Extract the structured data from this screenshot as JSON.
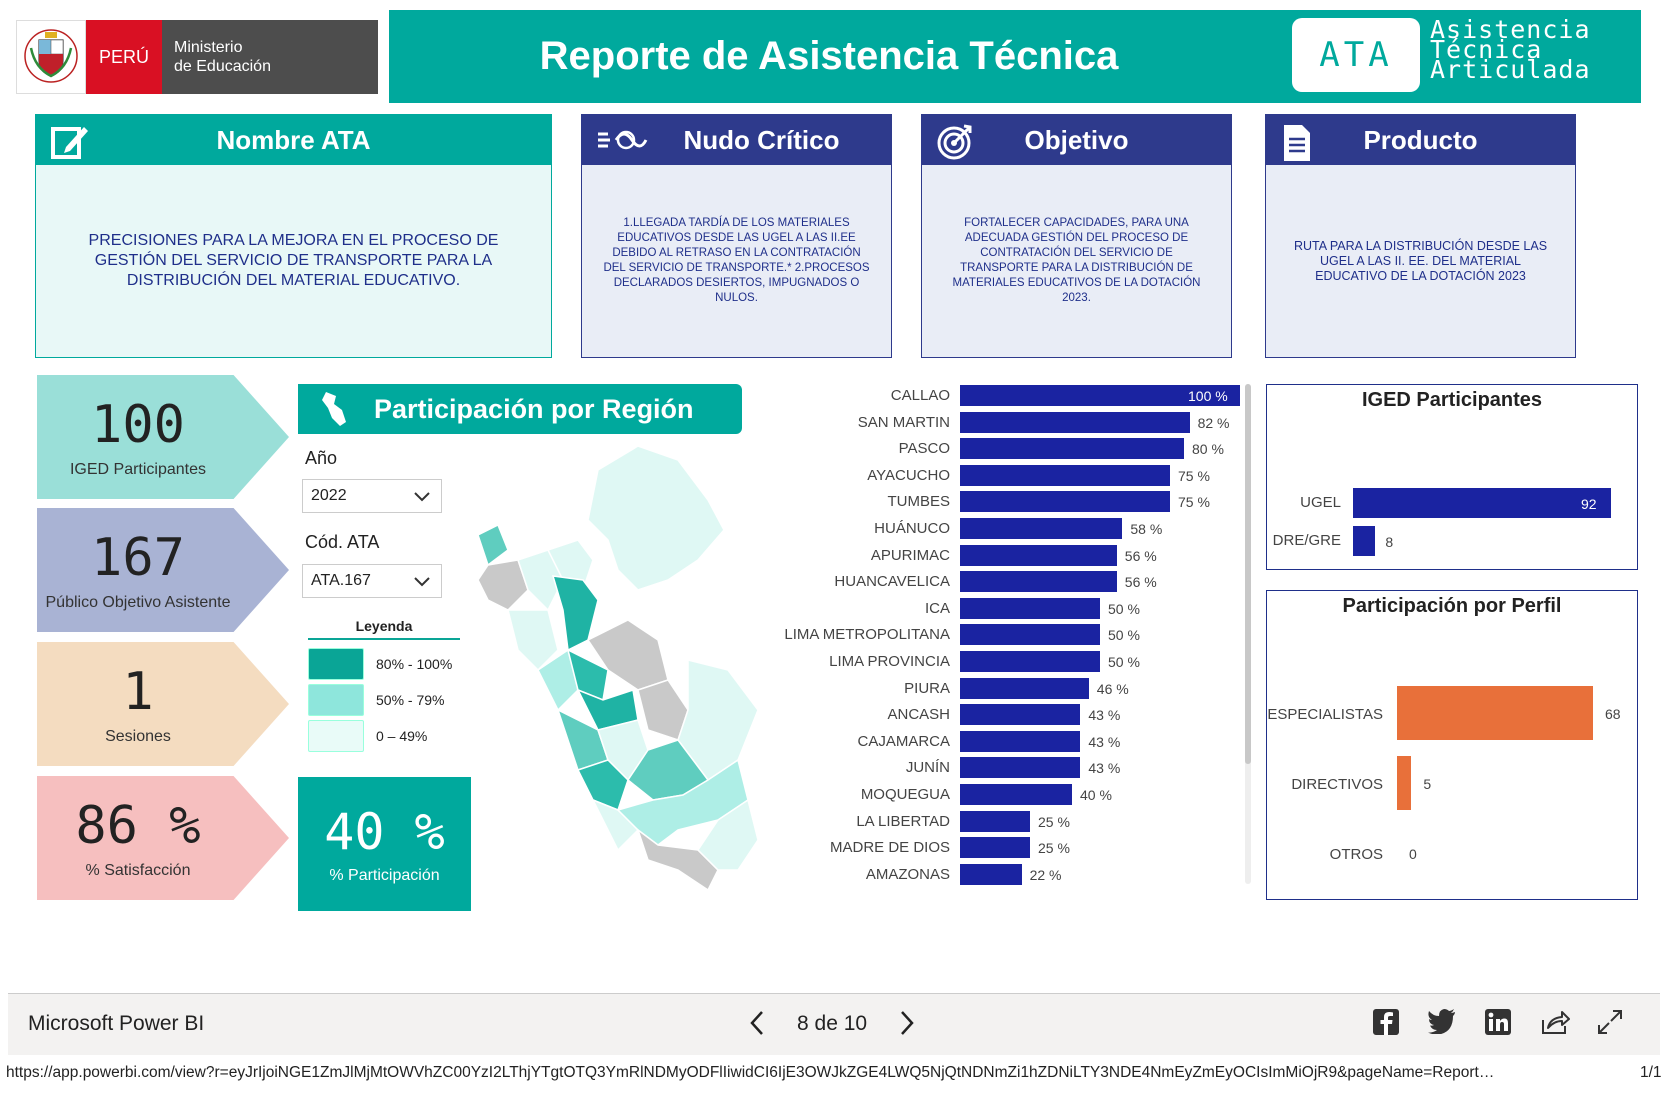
{
  "header": {
    "logo": {
      "country": "PERÚ",
      "ministry_line1": "Ministerio",
      "ministry_line2": "de Educación",
      "shield": "peru-coat-of-arms-icon"
    },
    "title": "Reporte de Asistencia Técnica",
    "badge": "ATA",
    "badge_text": [
      "Asistencia",
      "Técnica",
      "Articulada"
    ],
    "colors": {
      "teal": "#00a99d",
      "navy": "#2e3a8c",
      "bar": "#1a23a1",
      "orange": "#e8703a"
    }
  },
  "cards": {
    "nombre": {
      "title": "Nombre ATA",
      "icon": "edit-icon",
      "body": "PRECISIONES PARA LA MEJORA EN EL PROCESO DE GESTIÓN DEL SERVICIO DE TRANSPORTE PARA LA DISTRIBUCIÓN DEL MATERIAL EDUCATIVO."
    },
    "nudo": {
      "title": "Nudo Crítico",
      "icon": "knot-icon",
      "body": "1.LLEGADA TARDÍA DE LOS MATERIALES EDUCATIVOS DESDE LAS UGEL A LAS II.EE DEBIDO AL RETRASO EN LA CONTRATACIÓN DEL SERVICIO DE TRANSPORTE.* 2.PROCESOS DECLARADOS DESIERTOS, IMPUGNADOS O NULOS."
    },
    "objetivo": {
      "title": "Objetivo",
      "icon": "target-icon",
      "body": "FORTALECER CAPACIDADES, PARA UNA ADECUADA GESTIÓN DEL PROCESO DE CONTRATACIÓN DEL SERVICIO DE TRANSPORTE PARA LA DISTRIBUCIÓN DE MATERIALES EDUCATIVOS DE LA DOTACIÓN 2023."
    },
    "producto": {
      "title": "Producto",
      "icon": "document-icon",
      "body": "RUTA PARA LA DISTRIBUCIÓN DESDE LAS UGEL A LAS II. EE. DEL MATERIAL EDUCATIVO DE LA DOTACIÓN 2023"
    }
  },
  "kpis": [
    {
      "value": "100",
      "label": "IGED Participantes",
      "color": "#9adfd8"
    },
    {
      "value": "167",
      "label": "Público Objetivo Asistente",
      "color": "#a9b3d4"
    },
    {
      "value": "1",
      "label": "Sesiones",
      "color": "#f4dcc0"
    },
    {
      "value": "86 %",
      "label": "% Satisfacción",
      "color": "#f6bfbf"
    }
  ],
  "region": {
    "title": "Participación por Región",
    "icon": "peru-map-icon",
    "year_label": "Año",
    "year_value": "2022",
    "code_label": "Cód. ATA",
    "code_value": "ATA.167",
    "legend_title": "Leyenda",
    "legend": [
      {
        "label": "80% - 100%",
        "color": "#0aa596"
      },
      {
        "label": "50% - 79%",
        "color": "#8ee6dc"
      },
      {
        "label": "0 – 49%",
        "color": "#e9fbf8"
      }
    ],
    "participation_value": "40 %",
    "participation_label": "% Participación"
  },
  "chart_data": [
    {
      "type": "bar",
      "orientation": "horizontal",
      "categories": [
        "CALLAO",
        "SAN MARTIN",
        "PASCO",
        "AYACUCHO",
        "TUMBES",
        "HUÁNUCO",
        "APURIMAC",
        "HUANCAVELICA",
        "ICA",
        "LIMA METROPOLITANA",
        "LIMA PROVINCIA",
        "PIURA",
        "ANCASH",
        "CAJAMARCA",
        "JUNÍN",
        "MOQUEGUA",
        "LA LIBERTAD",
        "MADRE DE DIOS",
        "AMAZONAS"
      ],
      "values": [
        100,
        82,
        80,
        75,
        75,
        58,
        56,
        56,
        50,
        50,
        50,
        46,
        43,
        43,
        43,
        40,
        25,
        25,
        22
      ],
      "value_labels": [
        "100 %",
        "82 %",
        "80 %",
        "75 %",
        "75 %",
        "58 %",
        "56 %",
        "56 %",
        "50 %",
        "50 %",
        "50 %",
        "46 %",
        "43 %",
        "43 %",
        "43 %",
        "40 %",
        "25 %",
        "25 %",
        "22 %"
      ],
      "xlim": [
        0,
        100
      ]
    },
    {
      "type": "bar",
      "orientation": "horizontal",
      "title": "IGED Participantes",
      "categories": [
        "UGEL",
        "DRE/GRE"
      ],
      "values": [
        92,
        8
      ]
    },
    {
      "type": "bar",
      "orientation": "horizontal",
      "title": "Participación por Perfil",
      "categories": [
        "ESPECIALISTAS",
        "DIRECTIVOS",
        "OTROS"
      ],
      "values": [
        68,
        5,
        0
      ]
    }
  ],
  "footer": {
    "brand": "Microsoft Power BI",
    "page": "8 de 10",
    "icons": [
      "facebook-icon",
      "twitter-icon",
      "linkedin-icon",
      "share-icon",
      "fullscreen-icon"
    ],
    "url": "https://app.powerbi.com/view?r=eyJrIjoiNGE1ZmJlMjMtOWVhZC00YzI2LThjYTgtOTQ3YmRlNDMyODFlIiwidCI6IjE3OWJkZGE4LWQ5NjQtNDNmZi1hZDNiLTY3NDE4NmEyZmEyOCIsImMiOjR9&pageName=Report…",
    "pager": "1/1"
  }
}
